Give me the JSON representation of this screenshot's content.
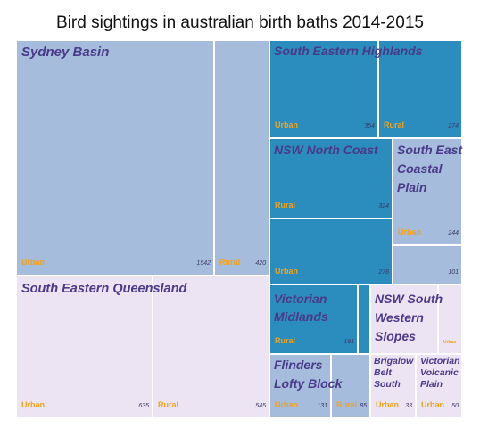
{
  "chart_data": {
    "type": "treemap",
    "title": "Bird sightings in australian birth baths 2014-2015",
    "colors": {
      "light_blue": "#a6bcdc",
      "dark_blue": "#2b8cbe",
      "lavender": "#ece4f2",
      "region_text": "#4a3a8a",
      "category_text": "#f3a21a",
      "value_text": "#3a3a6a"
    },
    "regions": [
      {
        "name": "Sydney Basin",
        "color": "light_blue",
        "cells": [
          {
            "category": "Urban",
            "value": 1542
          },
          {
            "category": "Rural",
            "value": 420
          }
        ]
      },
      {
        "name": "South Eastern Highlands",
        "color": "dark_blue",
        "cells": [
          {
            "category": "Urban",
            "value": 354
          },
          {
            "category": "Rural",
            "value": 274
          }
        ]
      },
      {
        "name": "NSW North Coast",
        "color": "dark_blue",
        "cells": [
          {
            "category": "Rural",
            "value": 324
          },
          {
            "category": "Urban",
            "value": 278
          }
        ]
      },
      {
        "name": "South East Coastal Plain",
        "color": "light_blue",
        "cells": [
          {
            "category": "Urban",
            "value": 244
          },
          {
            "category": "",
            "value": 101
          }
        ]
      },
      {
        "name": "South Eastern Queensland",
        "color": "lavender",
        "cells": [
          {
            "category": "Urban",
            "value": 635
          },
          {
            "category": "Rural",
            "value": 545
          }
        ]
      },
      {
        "name": "Victorian Midlands",
        "color": "dark_blue",
        "cells": [
          {
            "category": "Rural",
            "value": 191
          },
          {
            "category": "",
            "value": null
          }
        ]
      },
      {
        "name": "NSW South Western Slopes",
        "color": "lavender",
        "cells": [
          {
            "category": "",
            "value": null
          },
          {
            "category": "Urban",
            "value": null
          }
        ]
      },
      {
        "name": "Flinders Lofty Block",
        "color": "light_blue",
        "cells": [
          {
            "category": "Urban",
            "value": 131
          },
          {
            "category": "Rural",
            "value": 85
          }
        ]
      },
      {
        "name": "Brigalow Belt South",
        "color": "lavender",
        "cells": [
          {
            "category": "Urban",
            "value": 33
          }
        ]
      },
      {
        "name": "Victorian Volcanic Plain",
        "color": "lavender",
        "cells": [
          {
            "category": "Urban",
            "value": 50
          }
        ]
      }
    ]
  }
}
